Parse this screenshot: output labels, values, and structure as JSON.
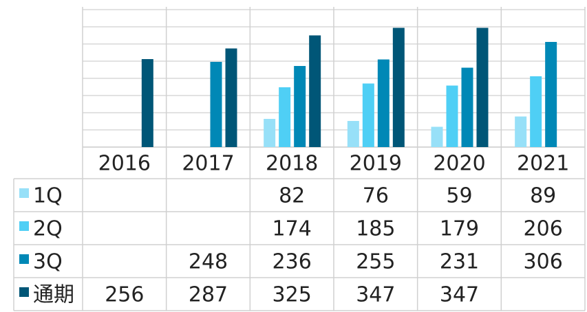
{
  "chart_data": {
    "type": "bar",
    "categories": [
      "2016",
      "2017",
      "2018",
      "2019",
      "2020",
      "2021"
    ],
    "series": [
      {
        "name": "1Q",
        "color": "#97e0f8",
        "values": [
          null,
          null,
          82,
          76,
          59,
          89
        ]
      },
      {
        "name": "2Q",
        "color": "#4fcff5",
        "values": [
          null,
          null,
          174,
          185,
          179,
          206
        ]
      },
      {
        "name": "3Q",
        "color": "#0088b6",
        "values": [
          null,
          248,
          236,
          255,
          231,
          306
        ]
      },
      {
        "name": "通期",
        "color": "#005677",
        "values": [
          256,
          287,
          325,
          347,
          347,
          null
        ]
      }
    ],
    "ylim": [
      0,
      400
    ],
    "yticks": [
      0,
      50,
      100,
      150,
      200,
      250,
      300,
      350,
      400
    ],
    "grid": true
  }
}
